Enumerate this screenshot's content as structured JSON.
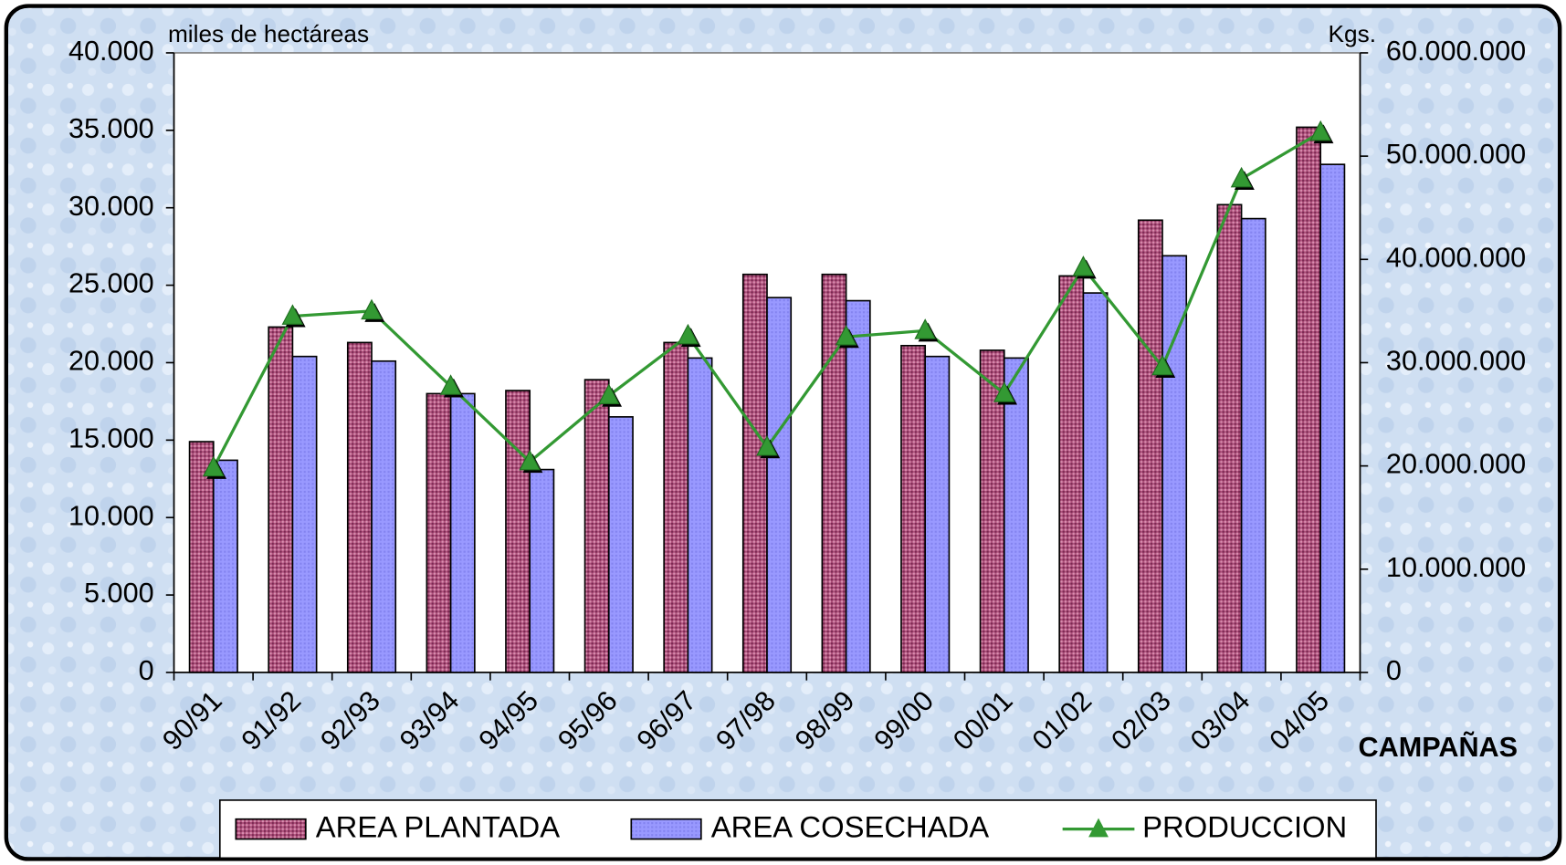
{
  "chart_data": {
    "type": "bar",
    "y_label": "miles de hectáreas",
    "y2_label": "Kgs.",
    "x_label": "CAMPAÑAS",
    "categories": [
      "90/91",
      "91/92",
      "92/93",
      "93/94",
      "94/95",
      "95/96",
      "96/97",
      "97/98",
      "98/99",
      "99/00",
      "00/01",
      "01/02",
      "02/03",
      "03/04",
      "04/05"
    ],
    "series": [
      {
        "name": "AREA PLANTADA",
        "type": "bar",
        "color": "#993366",
        "values": [
          14900,
          22300,
          21300,
          18000,
          18200,
          18900,
          21300,
          25700,
          25700,
          21100,
          20800,
          25600,
          29200,
          30200,
          35200
        ]
      },
      {
        "name": "AREA COSECHADA",
        "type": "bar",
        "color": "#9999ff",
        "values": [
          13700,
          20400,
          20100,
          18000,
          13100,
          16500,
          20300,
          24200,
          24000,
          20400,
          20300,
          24500,
          26900,
          29300,
          32800
        ]
      },
      {
        "name": "PRODUCCION",
        "type": "line",
        "axis": "y2",
        "color": "#339933",
        "values": [
          19800000,
          34500000,
          35000000,
          27700000,
          20400000,
          26800000,
          32600000,
          21800000,
          32500000,
          33100000,
          27000000,
          39200000,
          29600000,
          47800000,
          52300000
        ]
      }
    ],
    "ylim": [
      0,
      40000
    ],
    "yticks": [
      0,
      {
        "value": 5000,
        "label": "5.000"
      },
      {
        "value": 10000,
        "label": "10.000"
      },
      {
        "value": 15000,
        "label": "15.000"
      },
      {
        "value": 20000,
        "label": "20.000"
      },
      {
        "value": 25000,
        "label": "25.000"
      },
      {
        "value": 30000,
        "label": "30.000"
      },
      {
        "value": 35000,
        "label": "35.000"
      },
      {
        "value": 40000,
        "label": "40.000"
      }
    ],
    "y2lim": [
      0,
      60000000
    ],
    "y2ticks": [
      0,
      {
        "value": 10000000,
        "label": "10.000.000"
      },
      {
        "value": 20000000,
        "label": "20.000.000"
      },
      {
        "value": 30000000,
        "label": "30.000.000"
      },
      {
        "value": 40000000,
        "label": "40.000.000"
      },
      {
        "value": 50000000,
        "label": "50.000.000"
      },
      {
        "value": 60000000,
        "label": "60.000.000"
      }
    ],
    "legend": "bottom",
    "grid": false
  }
}
